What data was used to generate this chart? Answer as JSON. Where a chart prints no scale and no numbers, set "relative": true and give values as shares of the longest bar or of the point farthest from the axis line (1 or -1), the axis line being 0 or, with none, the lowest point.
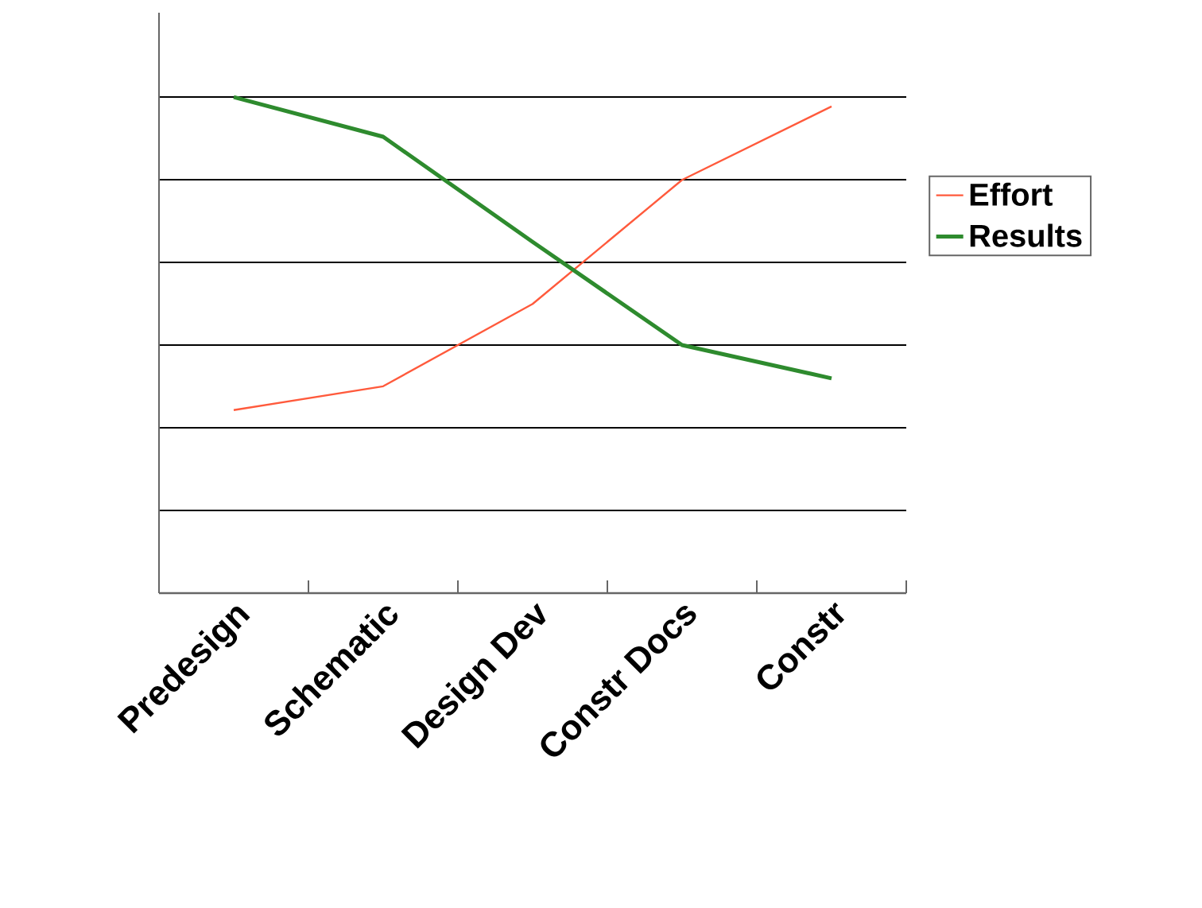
{
  "chart_data": {
    "type": "line",
    "relative": true,
    "categories": [
      "Predesign",
      "Schematic",
      "Design Dev",
      "Constr Docs",
      "Constr"
    ],
    "series": [
      {
        "name": "Effort",
        "color": "#ff5a3c",
        "values": [
          0.369,
          0.417,
          0.583,
          0.833,
          0.981
        ]
      },
      {
        "name": "Results",
        "color": "#2e8b2e",
        "values": [
          1,
          0.92,
          0.708,
          0.5,
          0.433
        ]
      }
    ],
    "grid": "y",
    "legend": "right",
    "marker": "none",
    "line_style": "solid"
  }
}
